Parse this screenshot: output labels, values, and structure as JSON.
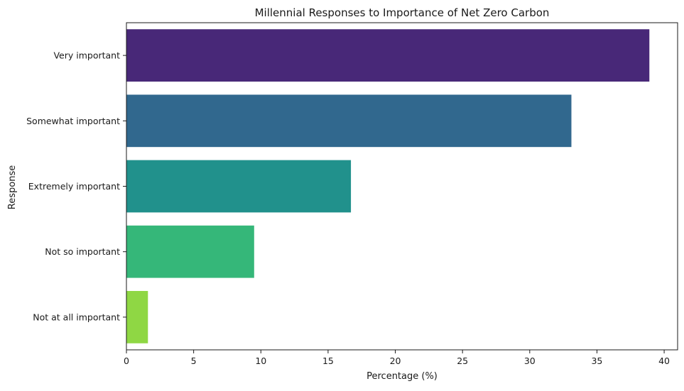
{
  "chart_data": {
    "type": "bar",
    "orientation": "horizontal",
    "title": "Millennial Responses to Importance of Net Zero Carbon",
    "xlabel": "Percentage (%)",
    "ylabel": "Response",
    "categories": [
      "Very important",
      "Somewhat important",
      "Extremely important",
      "Not so important",
      "Not at all important"
    ],
    "values": [
      38.9,
      33.1,
      16.7,
      9.5,
      1.6
    ],
    "colors": [
      "#482878",
      "#31688e",
      "#21918c",
      "#35b779",
      "#8fd744"
    ],
    "xlim": [
      0,
      41
    ],
    "xticks": [
      0,
      5,
      10,
      15,
      20,
      25,
      30,
      35,
      40
    ],
    "grid": false,
    "legend": "none"
  }
}
